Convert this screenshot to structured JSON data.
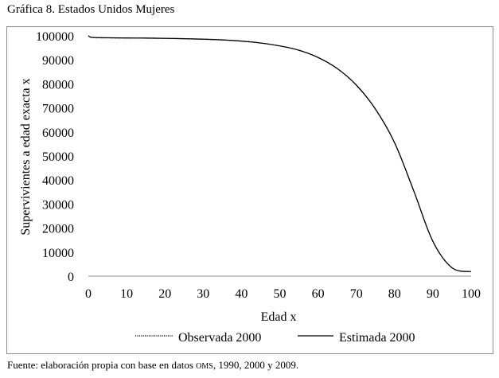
{
  "figure": {
    "title": "Gráfica 8. Estados Unidos Mujeres",
    "source_prefix": "Fuente: elaboración propia con base en datos ",
    "source_abbrev": "OMS",
    "source_suffix": ", 1990, 2000 y 2009."
  },
  "chart_data": {
    "type": "line",
    "xlabel": "Edad x",
    "ylabel": "Supervivientes a edad exacta x",
    "xlim": [
      0,
      100
    ],
    "ylim": [
      0,
      100000
    ],
    "xticks": [
      0,
      10,
      20,
      30,
      40,
      50,
      60,
      70,
      80,
      90,
      100
    ],
    "yticks": [
      0,
      10000,
      20000,
      30000,
      40000,
      50000,
      60000,
      70000,
      80000,
      90000,
      100000
    ],
    "grid": false,
    "legend_position": "bottom",
    "x": [
      0,
      1,
      5,
      10,
      15,
      20,
      25,
      30,
      35,
      40,
      45,
      50,
      55,
      60,
      65,
      70,
      75,
      80,
      85,
      90,
      95,
      100
    ],
    "series": [
      {
        "name": "Observada 2000",
        "line_style": "dotted",
        "color": "#000000",
        "values": [
          100000,
          99300,
          99150,
          99100,
          99050,
          98950,
          98800,
          98600,
          98300,
          97800,
          97000,
          95800,
          94000,
          91000,
          86400,
          79500,
          69500,
          55500,
          35500,
          14500,
          3500,
          1800
        ]
      },
      {
        "name": "Estimada 2000",
        "line_style": "solid",
        "color": "#000000",
        "values": [
          100000,
          99350,
          99200,
          99100,
          99050,
          98950,
          98800,
          98600,
          98300,
          97800,
          97000,
          95800,
          94000,
          91000,
          86400,
          79500,
          69500,
          55500,
          35500,
          14500,
          3500,
          1900
        ]
      }
    ]
  }
}
